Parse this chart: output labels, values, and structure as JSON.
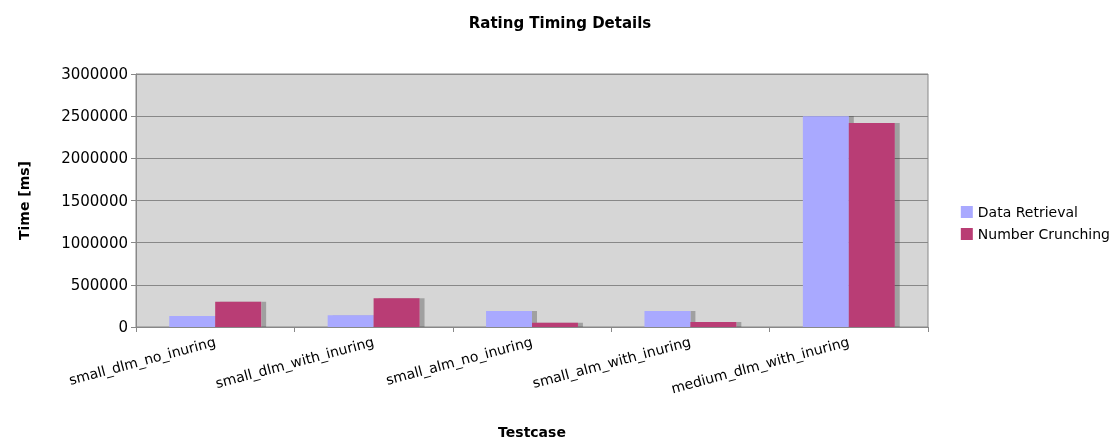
{
  "chart_data": {
    "type": "bar",
    "title": "Rating Timing Details",
    "xlabel": "Testcase",
    "ylabel": "Time [ms]",
    "categories": [
      "small_dlm_no_inuring",
      "small_dlm_with_inuring",
      "small_alm_no_inuring",
      "small_alm_with_inuring",
      "medium_dlm_with_inuring"
    ],
    "series": [
      {
        "name": "Data Retrieval",
        "color": "#a9a9ff",
        "values": [
          130000,
          140000,
          190000,
          190000,
          2500000
        ]
      },
      {
        "name": "Number Crunching",
        "color": "#b93d74",
        "values": [
          300000,
          340000,
          50000,
          60000,
          2420000
        ]
      }
    ],
    "ylim": [
      0,
      3000000
    ],
    "yticks": [
      0,
      500000,
      1000000,
      1500000,
      2000000,
      2500000,
      3000000
    ],
    "grid": "y",
    "legend": "right"
  }
}
